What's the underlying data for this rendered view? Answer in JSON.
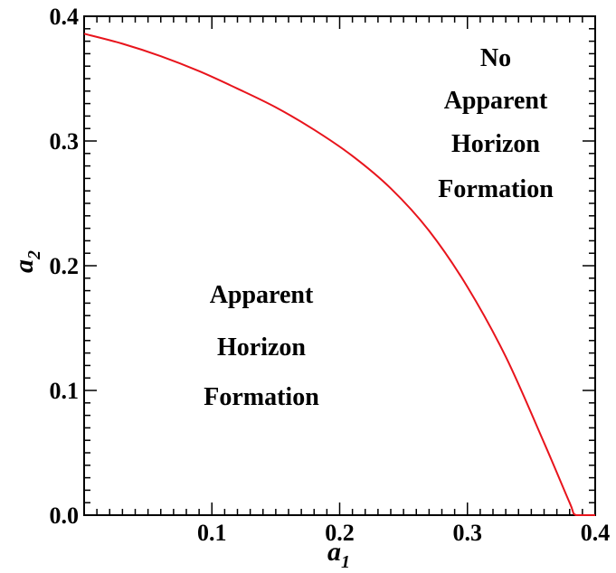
{
  "chart_data": {
    "type": "line",
    "title": "",
    "xlabel": {
      "base": "a",
      "subscript": "1"
    },
    "ylabel": {
      "base": "a",
      "subscript": "2"
    },
    "xlim": [
      0.0,
      0.4
    ],
    "ylim": [
      0.0,
      0.4
    ],
    "x_ticks": [
      {
        "value": 0.1,
        "label": "0.1"
      },
      {
        "value": 0.2,
        "label": "0.2"
      },
      {
        "value": 0.3,
        "label": "0.3"
      },
      {
        "value": 0.4,
        "label": "0.4"
      }
    ],
    "y_ticks": [
      {
        "value": 0.0,
        "label": "0.0"
      },
      {
        "value": 0.1,
        "label": "0.1"
      },
      {
        "value": 0.2,
        "label": "0.2"
      },
      {
        "value": 0.3,
        "label": "0.3"
      },
      {
        "value": 0.4,
        "label": "0.4"
      }
    ],
    "grid": false,
    "series": [
      {
        "color": "#e8141c",
        "x": [
          0.0,
          0.03,
          0.06,
          0.09,
          0.12,
          0.15,
          0.18,
          0.21,
          0.24,
          0.27,
          0.3,
          0.33,
          0.36,
          0.38,
          0.385,
          0.4
        ],
        "y": [
          0.386,
          0.378,
          0.368,
          0.356,
          0.342,
          0.327,
          0.309,
          0.288,
          0.262,
          0.228,
          0.183,
          0.127,
          0.058,
          0.01,
          0.0,
          0.0
        ]
      }
    ],
    "annotations": [
      {
        "lines": [
          "No",
          "Apparent",
          "Horizon",
          "Formation"
        ],
        "region": "upper-right"
      },
      {
        "lines": [
          "Apparent",
          "Horizon",
          "Formation"
        ],
        "region": "lower-left"
      }
    ]
  }
}
